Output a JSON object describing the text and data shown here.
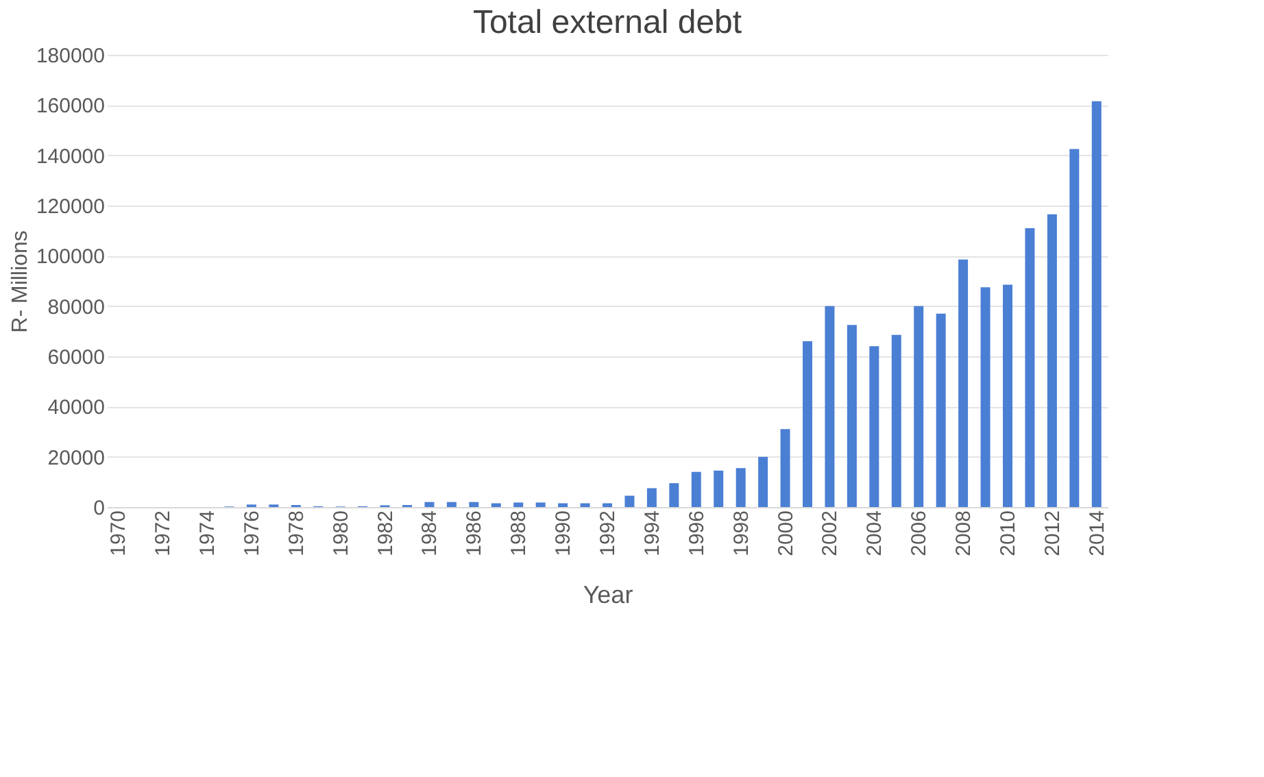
{
  "chart_data": {
    "type": "bar",
    "title": "Total external debt",
    "xlabel": "Year",
    "ylabel": "R- Millions",
    "categories": [
      "1970",
      null,
      "1972",
      null,
      "1974",
      null,
      "1976",
      null,
      "1978",
      null,
      "1980",
      null,
      "1982",
      null,
      "1984",
      null,
      "1986",
      null,
      "1988",
      null,
      "1990",
      null,
      "1992",
      null,
      "1994",
      null,
      "1996",
      null,
      "1998",
      null,
      "2000",
      null,
      "2002",
      null,
      "2004",
      null,
      "2006",
      null,
      "2008",
      null,
      "2010",
      null,
      "2012",
      null,
      "2014"
    ],
    "values": [
      0,
      0,
      0,
      0,
      0,
      200,
      1000,
      1000,
      800,
      300,
      200,
      300,
      700,
      800,
      2000,
      2000,
      2000,
      1500,
      1800,
      1800,
      1500,
      1500,
      1500,
      4500,
      7500,
      9500,
      14000,
      14500,
      15500,
      20000,
      31000,
      66000,
      80000,
      72500,
      64000,
      68500,
      80000,
      77000,
      98500,
      87500,
      88500,
      111000,
      116500,
      142500,
      161500
    ],
    "color": "#4a7fd4",
    "ylim": [
      0,
      180000
    ],
    "yticks": [
      0,
      20000,
      40000,
      60000,
      80000,
      100000,
      120000,
      140000,
      160000,
      180000
    ],
    "grid": "y"
  }
}
